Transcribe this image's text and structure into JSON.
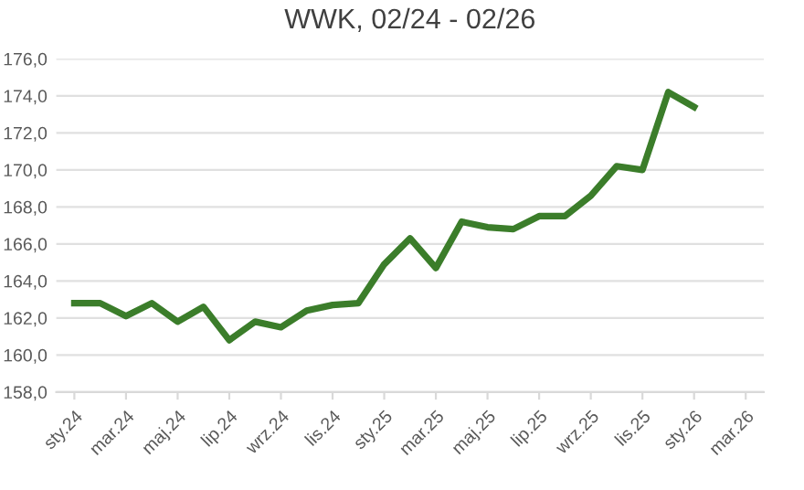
{
  "chart_data": {
    "type": "line",
    "title": "WWK, 02/24 - 02/26",
    "categories": [
      "sty.24",
      null,
      "mar.24",
      null,
      "maj.24",
      null,
      "lip.24",
      null,
      "wrz.24",
      null,
      "lis.24",
      null,
      "sty.25",
      null,
      "mar.25",
      null,
      "maj.25",
      null,
      "lip.25",
      null,
      "wrz.25",
      null,
      "lis.25",
      null,
      "sty.26",
      null,
      "mar.26"
    ],
    "series": [
      {
        "color": "#3b7d2a",
        "values": [
          162.8,
          162.8,
          162.1,
          162.8,
          161.8,
          162.6,
          160.8,
          161.8,
          161.5,
          162.4,
          162.7,
          162.8,
          164.9,
          166.3,
          164.7,
          167.2,
          166.9,
          166.8,
          167.5,
          167.5,
          168.6,
          170.2,
          170.0,
          174.2,
          173.4,
          null,
          null
        ]
      }
    ],
    "ylim": [
      158,
      176
    ],
    "yticks": [
      {
        "value": 158,
        "label": "158,0"
      },
      {
        "value": 160,
        "label": "160,0"
      },
      {
        "value": 162,
        "label": "162,0"
      },
      {
        "value": 164,
        "label": "164,0"
      },
      {
        "value": 166,
        "label": "166,0"
      },
      {
        "value": 168,
        "label": "168,0"
      },
      {
        "value": 170,
        "label": "170,0"
      },
      {
        "value": 172,
        "label": "172,0"
      },
      {
        "value": 174,
        "label": "174,0"
      },
      {
        "value": 176,
        "label": "176,0"
      }
    ],
    "grid": "y",
    "marker": "none",
    "line_style": "solid",
    "legend": false
  }
}
